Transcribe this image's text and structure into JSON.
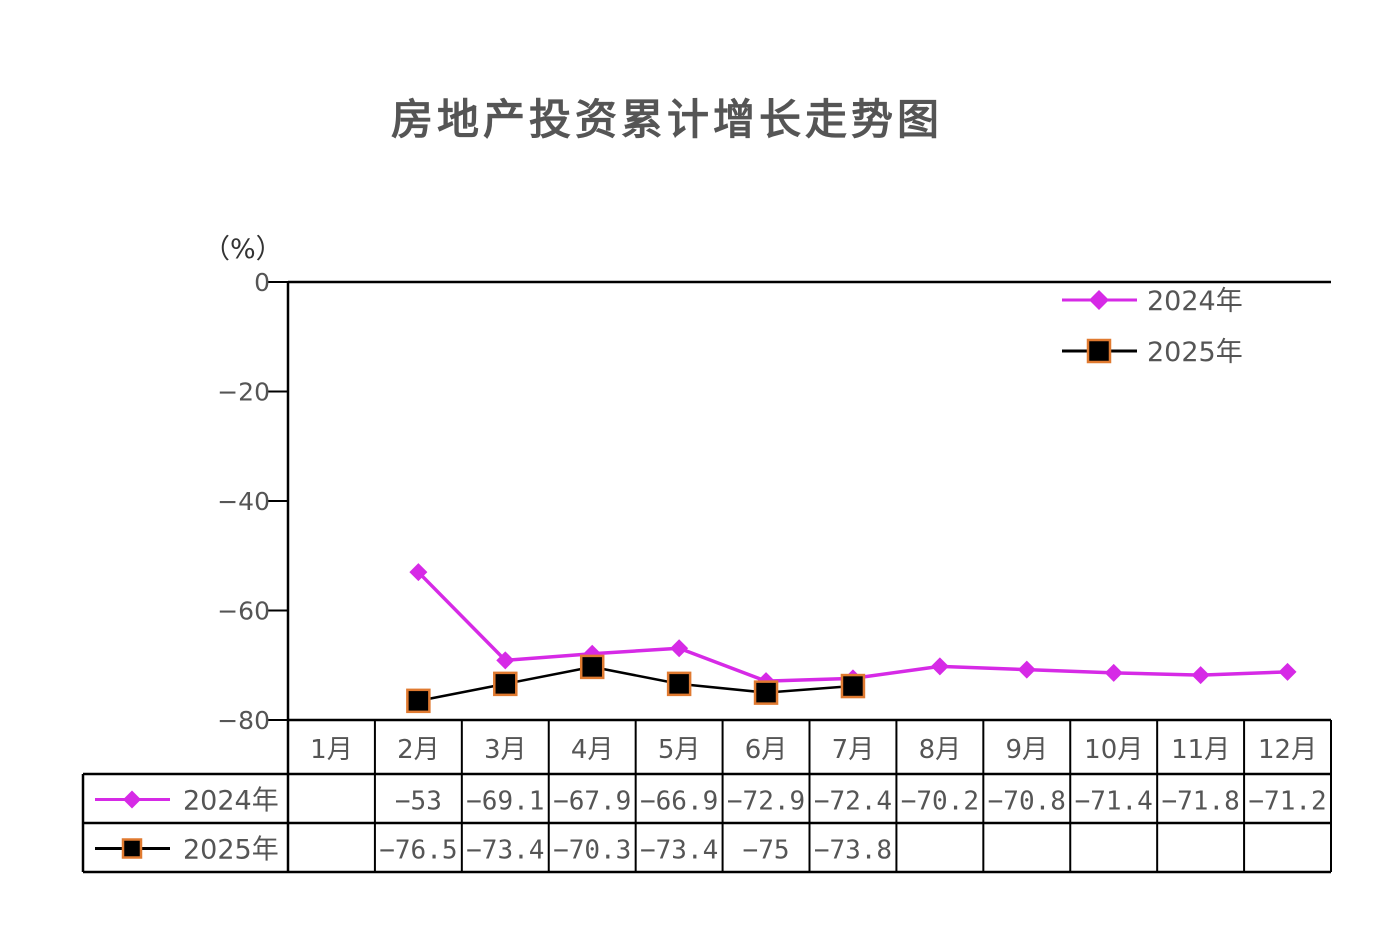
{
  "chart_data": {
    "type": "line",
    "title": "房地产投资累计增长走势图",
    "ylabel": "（%）",
    "ylim": [
      -80,
      0
    ],
    "yticks": [
      "0",
      "−20",
      "−40",
      "−60",
      "−80"
    ],
    "ytick_values": [
      0,
      -20,
      -40,
      -60,
      -80
    ],
    "categories": [
      "1月",
      "2月",
      "3月",
      "4月",
      "5月",
      "6月",
      "7月",
      "8月",
      "9月",
      "10月",
      "11月",
      "12月"
    ],
    "legend_position": "top-right",
    "grid": false,
    "series": [
      {
        "name": "2024年",
        "color": "#d62ae6",
        "marker": "diamond",
        "values": [
          null,
          -53,
          -69.1,
          -67.9,
          -66.9,
          -72.9,
          -72.4,
          -70.2,
          -70.8,
          -71.4,
          -71.8,
          -71.2
        ],
        "labels": [
          "",
          "−53",
          "−69.1",
          "−67.9",
          "−66.9",
          "−72.9",
          "−72.4",
          "−70.2",
          "−70.8",
          "−71.4",
          "−71.8",
          "−71.2"
        ]
      },
      {
        "name": "2025年",
        "color": "#000000",
        "marker_edge_color": "#e07a30",
        "marker": "square",
        "values": [
          null,
          -76.5,
          -73.4,
          -70.3,
          -73.4,
          -75,
          -73.8,
          null,
          null,
          null,
          null,
          null
        ],
        "labels": [
          "",
          "−76.5",
          "−73.4",
          "−70.3",
          "−73.4",
          "−75",
          "−73.8",
          "",
          "",
          "",
          "",
          ""
        ]
      }
    ]
  }
}
